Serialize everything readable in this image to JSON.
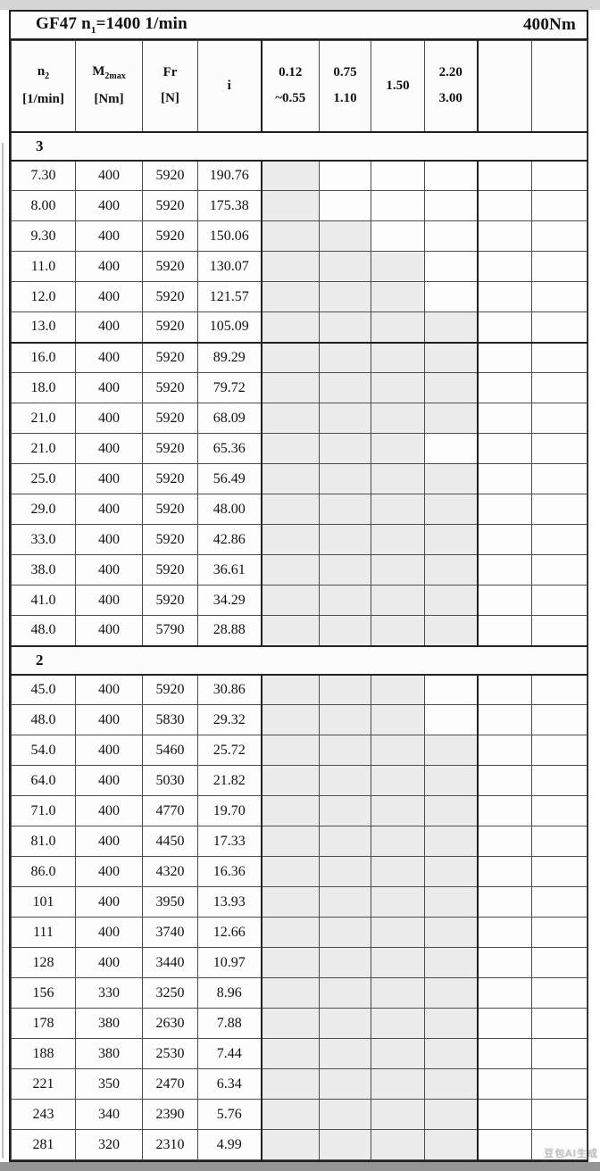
{
  "title": {
    "prefix": "GF47 n",
    "sub": "1",
    "suffix": "=1400 1/min",
    "torque": "400Nm"
  },
  "columns": [
    {
      "id": "n2",
      "base": "n",
      "sub": "2",
      "unit": "[1/min]"
    },
    {
      "id": "m2max",
      "base": "M",
      "sub": "2max",
      "unit": "[Nm]"
    },
    {
      "id": "fr",
      "base": "Fr",
      "sub": "",
      "unit": "[N]"
    },
    {
      "id": "i",
      "base": "i",
      "sub": "",
      "unit": ""
    },
    {
      "id": "ratio-012-055",
      "base": "0.12",
      "sub": "",
      "unit": "~0.55"
    },
    {
      "id": "ratio-075-110",
      "base": "0.75",
      "sub": "",
      "unit": "1.10"
    },
    {
      "id": "ratio-150",
      "base": "1.50",
      "sub": "",
      "unit": ""
    },
    {
      "id": "ratio-220-300",
      "base": "2.20",
      "sub": "",
      "unit": "3.00"
    },
    {
      "id": "empty-1",
      "base": "",
      "sub": "",
      "unit": ""
    },
    {
      "id": "empty-2",
      "base": "",
      "sub": "",
      "unit": ""
    }
  ],
  "sections": [
    {
      "label": "3",
      "divider_after": 5,
      "rows": [
        {
          "n2": "7.30",
          "m2max": "400",
          "fr": "5920",
          "i": "190.76",
          "shaded": [
            5
          ]
        },
        {
          "n2": "8.00",
          "m2max": "400",
          "fr": "5920",
          "i": "175.38",
          "shaded": [
            5
          ]
        },
        {
          "n2": "9.30",
          "m2max": "400",
          "fr": "5920",
          "i": "150.06",
          "shaded": [
            5,
            6
          ]
        },
        {
          "n2": "11.0",
          "m2max": "400",
          "fr": "5920",
          "i": "130.07",
          "shaded": [
            5,
            6,
            7
          ]
        },
        {
          "n2": "12.0",
          "m2max": "400",
          "fr": "5920",
          "i": "121.57",
          "shaded": [
            5,
            6,
            7
          ]
        },
        {
          "n2": "13.0",
          "m2max": "400",
          "fr": "5920",
          "i": "105.09",
          "shaded": [
            5,
            6,
            7,
            8
          ]
        },
        {
          "n2": "16.0",
          "m2max": "400",
          "fr": "5920",
          "i": "89.29",
          "shaded": [
            5,
            6,
            7,
            8
          ]
        },
        {
          "n2": "18.0",
          "m2max": "400",
          "fr": "5920",
          "i": "79.72",
          "shaded": [
            5,
            6,
            7,
            8
          ]
        },
        {
          "n2": "21.0",
          "m2max": "400",
          "fr": "5920",
          "i": "68.09",
          "shaded": [
            5,
            6,
            7,
            8
          ]
        },
        {
          "n2": "21.0",
          "m2max": "400",
          "fr": "5920",
          "i": "65.36",
          "shaded": [
            5,
            6,
            7
          ]
        },
        {
          "n2": "25.0",
          "m2max": "400",
          "fr": "5920",
          "i": "56.49",
          "shaded": [
            5,
            6,
            7,
            8
          ]
        },
        {
          "n2": "29.0",
          "m2max": "400",
          "fr": "5920",
          "i": "48.00",
          "shaded": [
            5,
            6,
            7,
            8
          ]
        },
        {
          "n2": "33.0",
          "m2max": "400",
          "fr": "5920",
          "i": "42.86",
          "shaded": [
            5,
            6,
            7,
            8
          ]
        },
        {
          "n2": "38.0",
          "m2max": "400",
          "fr": "5920",
          "i": "36.61",
          "shaded": [
            5,
            6,
            7,
            8
          ]
        },
        {
          "n2": "41.0",
          "m2max": "400",
          "fr": "5920",
          "i": "34.29",
          "shaded": [
            5,
            6,
            7,
            8
          ]
        },
        {
          "n2": "48.0",
          "m2max": "400",
          "fr": "5790",
          "i": "28.88",
          "shaded": [
            5,
            6,
            7,
            8
          ]
        }
      ]
    },
    {
      "label": "2",
      "divider_after": -1,
      "rows": [
        {
          "n2": "45.0",
          "m2max": "400",
          "fr": "5920",
          "i": "30.86",
          "shaded": [
            5,
            6,
            7
          ]
        },
        {
          "n2": "48.0",
          "m2max": "400",
          "fr": "5830",
          "i": "29.32",
          "shaded": [
            5,
            6,
            7
          ]
        },
        {
          "n2": "54.0",
          "m2max": "400",
          "fr": "5460",
          "i": "25.72",
          "shaded": [
            5,
            6,
            7,
            8
          ]
        },
        {
          "n2": "64.0",
          "m2max": "400",
          "fr": "5030",
          "i": "21.82",
          "shaded": [
            5,
            6,
            7,
            8
          ]
        },
        {
          "n2": "71.0",
          "m2max": "400",
          "fr": "4770",
          "i": "19.70",
          "shaded": [
            5,
            6,
            7,
            8
          ]
        },
        {
          "n2": "81.0",
          "m2max": "400",
          "fr": "4450",
          "i": "17.33",
          "shaded": [
            5,
            6,
            7,
            8
          ]
        },
        {
          "n2": "86.0",
          "m2max": "400",
          "fr": "4320",
          "i": "16.36",
          "shaded": [
            5,
            6,
            7,
            8
          ]
        },
        {
          "n2": "101",
          "m2max": "400",
          "fr": "3950",
          "i": "13.93",
          "shaded": [
            5,
            6,
            7,
            8
          ]
        },
        {
          "n2": "111",
          "m2max": "400",
          "fr": "3740",
          "i": "12.66",
          "shaded": [
            5,
            6,
            7,
            8
          ]
        },
        {
          "n2": "128",
          "m2max": "400",
          "fr": "3440",
          "i": "10.97",
          "shaded": [
            5,
            6,
            7,
            8
          ]
        },
        {
          "n2": "156",
          "m2max": "330",
          "fr": "3250",
          "i": "8.96",
          "shaded": [
            5,
            6,
            7,
            8
          ]
        },
        {
          "n2": "178",
          "m2max": "380",
          "fr": "2630",
          "i": "7.88",
          "shaded": [
            5,
            6,
            7,
            8
          ]
        },
        {
          "n2": "188",
          "m2max": "380",
          "fr": "2530",
          "i": "7.44",
          "shaded": [
            5,
            6,
            7,
            8
          ]
        },
        {
          "n2": "221",
          "m2max": "350",
          "fr": "2470",
          "i": "6.34",
          "shaded": [
            5,
            6,
            7,
            8
          ]
        },
        {
          "n2": "243",
          "m2max": "340",
          "fr": "2390",
          "i": "5.76",
          "shaded": [
            5,
            6,
            7,
            8
          ]
        },
        {
          "n2": "281",
          "m2max": "320",
          "fr": "2310",
          "i": "4.99",
          "shaded": [
            5,
            6,
            7,
            8
          ]
        }
      ]
    }
  ],
  "colors": {
    "shade": "#ececec",
    "border_thick": "#1f1f1f",
    "border_thin": "#4d4d4d"
  },
  "watermark": "豆包AI生成"
}
